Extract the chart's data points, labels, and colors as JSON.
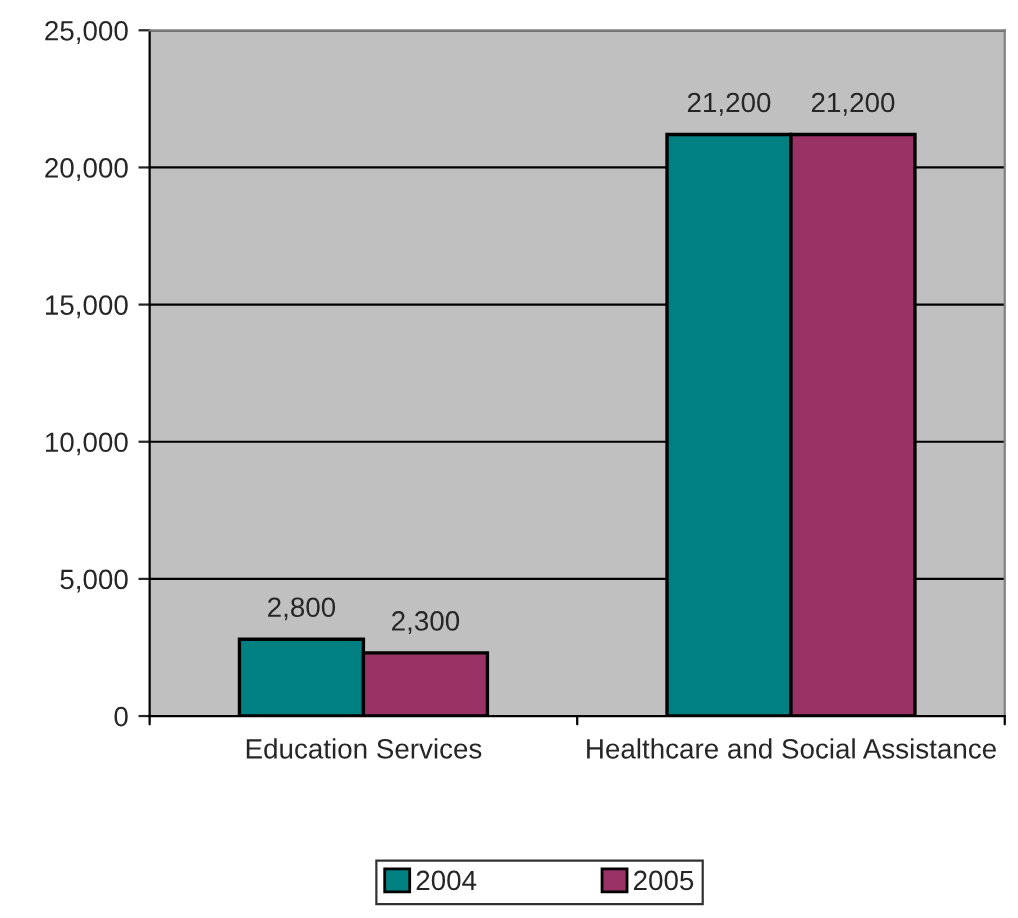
{
  "chart_data": {
    "type": "bar",
    "categories": [
      "Education Services",
      "Healthcare and Social Assistance"
    ],
    "series": [
      {
        "name": "2004",
        "color": "#008080",
        "values": [
          2800,
          21200
        ],
        "value_labels": [
          "2,800",
          "21,200"
        ]
      },
      {
        "name": "2005",
        "color": "#993366",
        "values": [
          2300,
          21200
        ],
        "value_labels": [
          "2,300",
          "21,200"
        ]
      }
    ],
    "ylim": [
      0,
      25000
    ],
    "yticks": [
      {
        "value": 0,
        "label": "0"
      },
      {
        "value": 5000,
        "label": "5,000"
      },
      {
        "value": 10000,
        "label": "10,000"
      },
      {
        "value": 15000,
        "label": "15,000"
      },
      {
        "value": 20000,
        "label": "20,000"
      },
      {
        "value": 25000,
        "label": "25,000"
      }
    ],
    "grid": "y",
    "legend": "bottom"
  }
}
